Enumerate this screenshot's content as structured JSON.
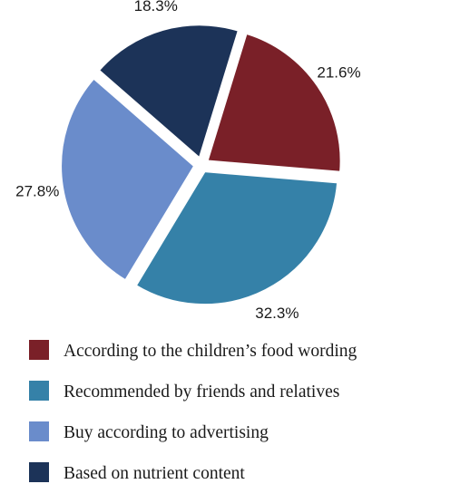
{
  "chart_data": {
    "type": "pie",
    "slices": [
      {
        "label": "According to the children’s food wording",
        "value": 21.6,
        "value_label": "21.6%",
        "color": "#7a2028"
      },
      {
        "label": "Recommended by friends and relatives",
        "value": 32.3,
        "value_label": "32.3%",
        "color": "#3581a8"
      },
      {
        "label": "Buy according to advertising",
        "value": 27.8,
        "value_label": "27.8%",
        "color": "#6a8ccb"
      },
      {
        "label": "Based on nutrient content",
        "value": 18.3,
        "value_label": "18.3%",
        "color": "#1c3358"
      }
    ],
    "start_angle_deg": 17,
    "exploded": true,
    "legend_position": "bottom-left"
  }
}
